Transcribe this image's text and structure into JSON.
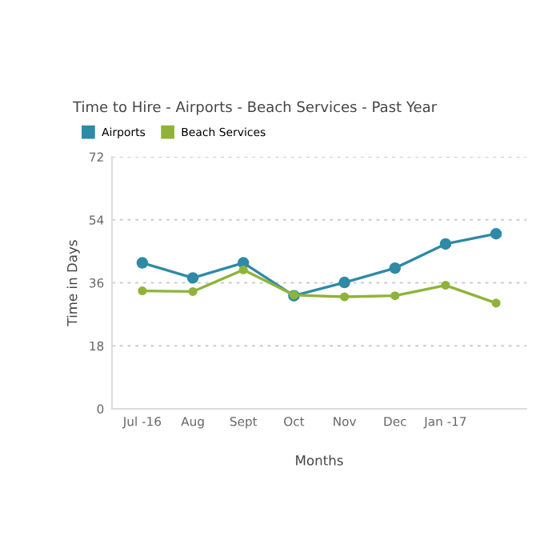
{
  "chart_data": {
    "type": "line",
    "title": "Time to Hire - Airports - Beach Services - Past Year",
    "xlabel": "Months",
    "ylabel": "Time in Days",
    "categories": [
      "Jul -16",
      "Aug",
      "Sept",
      "Oct",
      "Nov",
      "Dec",
      "Jan -17",
      null
    ],
    "series": [
      {
        "name": "Airports",
        "color": "#2e8aa6",
        "values": [
          41.7,
          37.4,
          41.7,
          32.3,
          36.1,
          40.2,
          47.1,
          50.0
        ]
      },
      {
        "name": "Beach Services",
        "color": "#8fb339",
        "values": [
          33.7,
          33.5,
          39.7,
          32.5,
          32.0,
          32.3,
          35.3,
          30.2
        ]
      }
    ],
    "ylim": [
      0,
      72
    ],
    "yticks": [
      0,
      18,
      36,
      54,
      72
    ],
    "grid": "y",
    "legend": "top left",
    "marker": "circle",
    "line_style": "solid"
  }
}
